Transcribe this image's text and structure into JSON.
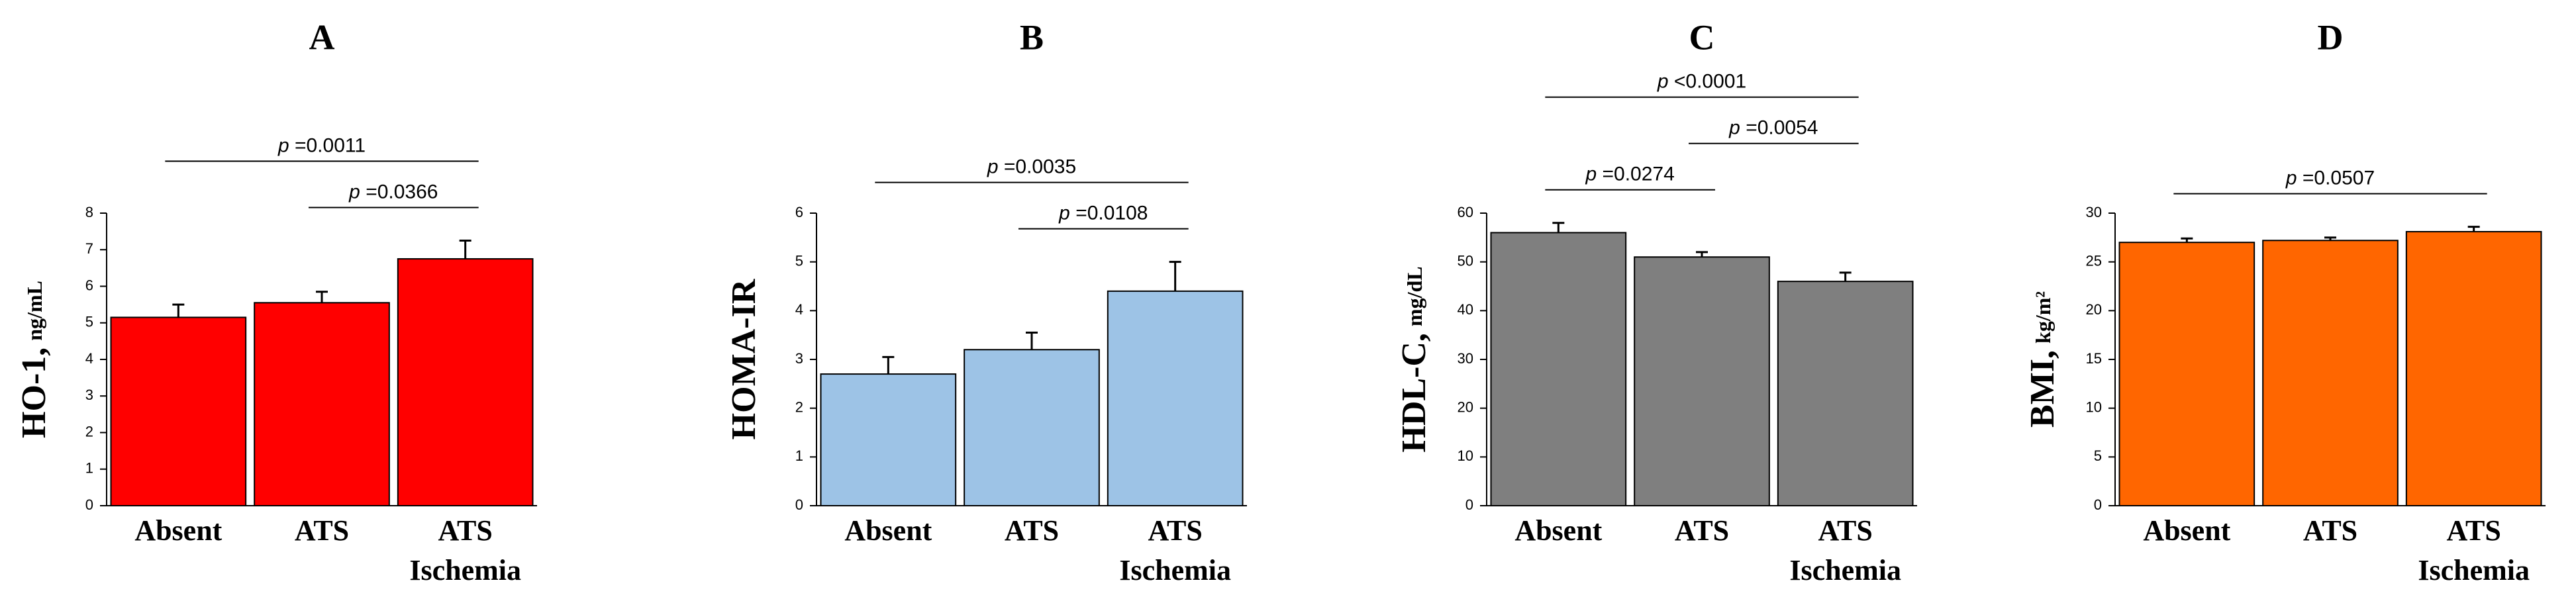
{
  "chart_data": [
    {
      "type": "bar",
      "title": "A",
      "ylabel": "HO-1,",
      "yunit": "ng/mL",
      "color": "#ff0000",
      "categories": [
        "Absent",
        "ATS",
        "ATS\nIschemia"
      ],
      "values": [
        5.15,
        5.55,
        6.75
      ],
      "errors": [
        0.35,
        0.3,
        0.5
      ],
      "ylim": [
        0,
        8
      ],
      "yticks": [
        0,
        1,
        2,
        3,
        4,
        5,
        6,
        7,
        8
      ],
      "brackets": [
        {
          "from": 0,
          "to": 2,
          "text": "p =0.0011"
        },
        {
          "from": 1,
          "to": 2,
          "text": "p =0.0366"
        }
      ]
    },
    {
      "type": "bar",
      "title": "B",
      "ylabel": "HOMA-IR",
      "color": "#9dc3e6",
      "categories": [
        "Absent",
        "ATS",
        "ATS\nIschemia"
      ],
      "values": [
        2.7,
        3.2,
        4.4
      ],
      "errors": [
        0.35,
        0.35,
        0.6
      ],
      "ylim": [
        0,
        6
      ],
      "yticks": [
        0,
        1,
        2,
        3,
        4,
        5,
        6
      ],
      "brackets": [
        {
          "from": 0,
          "to": 2,
          "text": "p =0.0035"
        },
        {
          "from": 1,
          "to": 2,
          "text": "p =0.0108"
        }
      ]
    },
    {
      "type": "bar",
      "title": "C",
      "ylabel": "HDL-C,",
      "yunit": "mg/dL",
      "color": "#7f7f7f",
      "categories": [
        "Absent",
        "ATS",
        "ATS\nIschemia"
      ],
      "values": [
        56,
        51,
        46
      ],
      "errors": [
        2,
        1,
        1.8
      ],
      "ylim": [
        0,
        60
      ],
      "yticks": [
        0,
        10,
        20,
        30,
        40,
        50,
        60
      ],
      "brackets": [
        {
          "from": 0,
          "to": 2,
          "text": "p <0.0001"
        },
        {
          "from": 0,
          "to": 1,
          "text": "p =0.0274"
        },
        {
          "from": 1,
          "to": 2,
          "text": "p =0.0054"
        }
      ]
    },
    {
      "type": "bar",
      "title": "D",
      "ylabel": "BMI,",
      "yunit": "kg/m²",
      "color": "#ff6600",
      "categories": [
        "Absent",
        "ATS",
        "ATS\nIschemia"
      ],
      "values": [
        27,
        27.2,
        28.1
      ],
      "errors": [
        0.4,
        0.3,
        0.5
      ],
      "ylim": [
        0,
        30
      ],
      "yticks": [
        0,
        5,
        10,
        15,
        20,
        25,
        30
      ],
      "brackets": [
        {
          "from": 0,
          "to": 2,
          "text": "p =0.0507"
        }
      ]
    }
  ]
}
